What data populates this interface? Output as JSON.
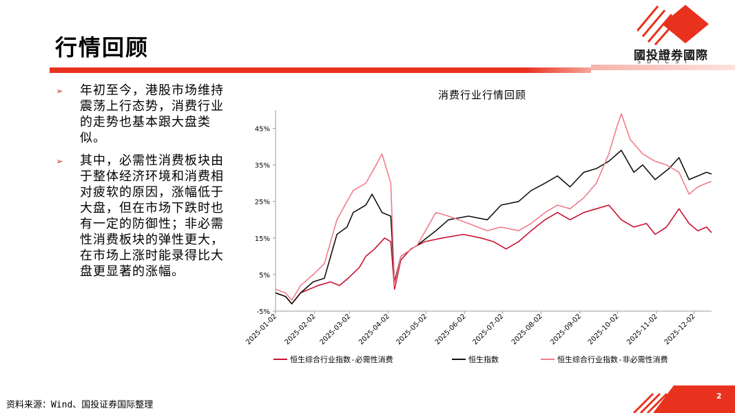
{
  "header": {
    "title": "行情回顾",
    "logo_cn": "國投證券國際",
    "logo_en": "SDICSI",
    "brand_color": "#e8321e"
  },
  "bullets": [
    "年初至今，港股市场维持震荡上行态势，消费行业的走势也基本跟大盘类似。",
    "其中，必需性消费板块由于整体经济环境和消费相对疲软的原因，涨幅低于大盘，但在市场下跌时也有一定的防御性；非必需性消费板块的弹性更大，在市场上涨时能录得比大盘更显著的涨幅。"
  ],
  "footer": {
    "source": "资料来源：Wind、国投证券国际整理",
    "page": "2"
  },
  "chart_data": {
    "type": "line",
    "title": "消费行业行情回顾",
    "xlabel": "",
    "ylabel": "",
    "x_ticks": [
      "2025-01-02",
      "2025-02-02",
      "2025-03-02",
      "2025-04-02",
      "2025-05-02",
      "2025-06-02",
      "2025-07-02",
      "2025-08-02",
      "2025-09-02",
      "2025-10-02",
      "2025-11-02",
      "2025-12-02"
    ],
    "y_ticks": [
      "-5%",
      "5%",
      "15%",
      "25%",
      "35%",
      "45%"
    ],
    "ylim": [
      -5,
      50
    ],
    "grid": false,
    "legend": "bottom",
    "series": [
      {
        "name": "恒生综合行业指数-必需性消费",
        "color": "#c8102e",
        "points": [
          [
            "2025-01-02",
            0
          ],
          [
            "2025-01-10",
            -1
          ],
          [
            "2025-01-15",
            -3
          ],
          [
            "2025-01-22",
            0
          ],
          [
            "2025-02-05",
            2
          ],
          [
            "2025-02-15",
            3
          ],
          [
            "2025-02-22",
            2
          ],
          [
            "2025-03-01",
            4
          ],
          [
            "2025-03-10",
            7
          ],
          [
            "2025-03-15",
            10
          ],
          [
            "2025-03-22",
            12
          ],
          [
            "2025-03-30",
            15
          ],
          [
            "2025-04-04",
            14
          ],
          [
            "2025-04-07",
            1
          ],
          [
            "2025-04-12",
            9
          ],
          [
            "2025-04-20",
            12
          ],
          [
            "2025-05-01",
            14
          ],
          [
            "2025-05-15",
            15
          ],
          [
            "2025-06-01",
            16
          ],
          [
            "2025-06-15",
            15
          ],
          [
            "2025-06-25",
            14
          ],
          [
            "2025-07-05",
            12
          ],
          [
            "2025-07-15",
            14
          ],
          [
            "2025-07-25",
            17
          ],
          [
            "2025-08-05",
            20
          ],
          [
            "2025-08-15",
            22
          ],
          [
            "2025-08-25",
            20
          ],
          [
            "2025-09-05",
            22
          ],
          [
            "2025-09-15",
            23
          ],
          [
            "2025-09-25",
            24
          ],
          [
            "2025-10-05",
            20
          ],
          [
            "2025-10-15",
            18
          ],
          [
            "2025-10-25",
            19
          ],
          [
            "2025-11-01",
            16
          ],
          [
            "2025-11-10",
            18
          ],
          [
            "2025-11-20",
            23
          ],
          [
            "2025-11-28",
            19
          ],
          [
            "2025-12-05",
            17
          ],
          [
            "2025-12-12",
            18
          ],
          [
            "2025-12-16",
            16.5
          ]
        ]
      },
      {
        "name": "恒生指数",
        "color": "#111111",
        "points": [
          [
            "2025-01-02",
            0
          ],
          [
            "2025-01-10",
            -1
          ],
          [
            "2025-01-15",
            -3
          ],
          [
            "2025-01-22",
            0
          ],
          [
            "2025-02-01",
            3
          ],
          [
            "2025-02-10",
            4
          ],
          [
            "2025-02-15",
            10
          ],
          [
            "2025-02-20",
            16
          ],
          [
            "2025-02-28",
            18
          ],
          [
            "2025-03-05",
            22
          ],
          [
            "2025-03-15",
            24
          ],
          [
            "2025-03-20",
            27
          ],
          [
            "2025-03-28",
            22
          ],
          [
            "2025-04-04",
            21
          ],
          [
            "2025-04-07",
            3
          ],
          [
            "2025-04-12",
            10
          ],
          [
            "2025-04-25",
            13
          ],
          [
            "2025-05-10",
            17
          ],
          [
            "2025-05-20",
            20
          ],
          [
            "2025-06-05",
            21
          ],
          [
            "2025-06-20",
            20
          ],
          [
            "2025-07-01",
            24
          ],
          [
            "2025-07-15",
            25
          ],
          [
            "2025-07-25",
            28
          ],
          [
            "2025-08-05",
            30
          ],
          [
            "2025-08-15",
            32
          ],
          [
            "2025-08-25",
            29
          ],
          [
            "2025-09-05",
            33
          ],
          [
            "2025-09-15",
            34
          ],
          [
            "2025-09-25",
            36
          ],
          [
            "2025-10-05",
            39
          ],
          [
            "2025-10-15",
            33
          ],
          [
            "2025-10-22",
            35
          ],
          [
            "2025-11-01",
            31
          ],
          [
            "2025-11-12",
            34
          ],
          [
            "2025-11-20",
            37
          ],
          [
            "2025-11-28",
            31
          ],
          [
            "2025-12-05",
            32
          ],
          [
            "2025-12-12",
            33
          ],
          [
            "2025-12-16",
            32.5
          ]
        ]
      },
      {
        "name": "恒生综合行业指数-非必需性消费",
        "color": "#f07c8a",
        "points": [
          [
            "2025-01-02",
            1
          ],
          [
            "2025-01-10",
            0
          ],
          [
            "2025-01-15",
            -2
          ],
          [
            "2025-01-22",
            2
          ],
          [
            "2025-02-01",
            5
          ],
          [
            "2025-02-10",
            8
          ],
          [
            "2025-02-15",
            14
          ],
          [
            "2025-02-20",
            20
          ],
          [
            "2025-02-28",
            25
          ],
          [
            "2025-03-05",
            28
          ],
          [
            "2025-03-15",
            30
          ],
          [
            "2025-03-20",
            33
          ],
          [
            "2025-03-28",
            38
          ],
          [
            "2025-04-04",
            30
          ],
          [
            "2025-04-07",
            2
          ],
          [
            "2025-04-12",
            10
          ],
          [
            "2025-04-25",
            13
          ],
          [
            "2025-05-10",
            22
          ],
          [
            "2025-05-20",
            21
          ],
          [
            "2025-06-05",
            19
          ],
          [
            "2025-06-20",
            17
          ],
          [
            "2025-07-01",
            18
          ],
          [
            "2025-07-15",
            17
          ],
          [
            "2025-07-25",
            19
          ],
          [
            "2025-08-05",
            22
          ],
          [
            "2025-08-15",
            24
          ],
          [
            "2025-08-25",
            23
          ],
          [
            "2025-09-05",
            26
          ],
          [
            "2025-09-15",
            30
          ],
          [
            "2025-09-25",
            38
          ],
          [
            "2025-10-01",
            45
          ],
          [
            "2025-10-05",
            49
          ],
          [
            "2025-10-12",
            42
          ],
          [
            "2025-10-22",
            38
          ],
          [
            "2025-11-01",
            36
          ],
          [
            "2025-11-10",
            35
          ],
          [
            "2025-11-20",
            33
          ],
          [
            "2025-11-28",
            27
          ],
          [
            "2025-12-05",
            29
          ],
          [
            "2025-12-12",
            30
          ],
          [
            "2025-12-16",
            30.5
          ]
        ]
      }
    ]
  }
}
